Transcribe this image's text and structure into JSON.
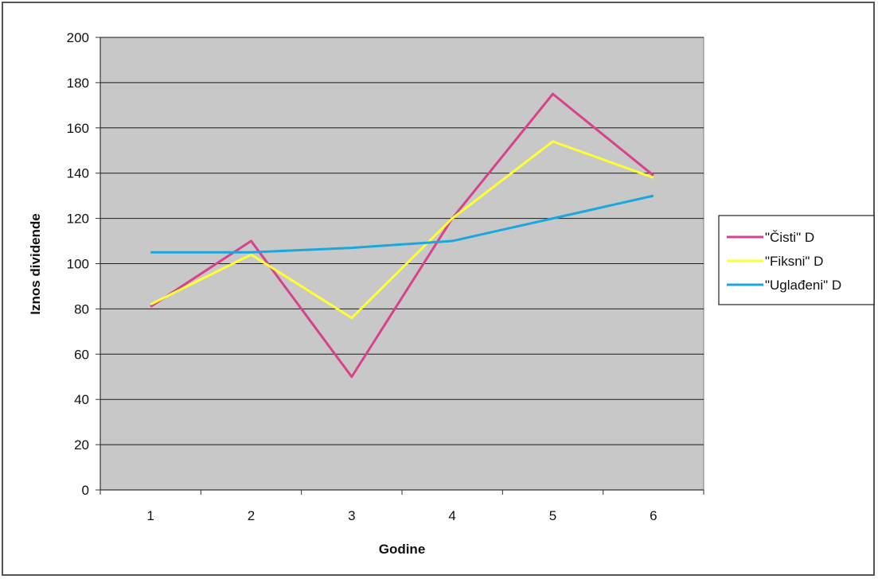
{
  "chart_data": {
    "type": "line",
    "title": "",
    "xlabel": "Godine",
    "ylabel": "Iznos dividende",
    "categories": [
      "1",
      "2",
      "3",
      "4",
      "5",
      "6"
    ],
    "ylim": [
      0,
      200
    ],
    "yticks": [
      0,
      20,
      40,
      60,
      80,
      100,
      120,
      140,
      160,
      180,
      200
    ],
    "ytick_labels": [
      "0",
      "20",
      "40",
      "60",
      "80",
      "100",
      "120",
      "140",
      "160",
      "180",
      "200"
    ],
    "grid": "horizontal",
    "legend_position": "right",
    "series": [
      {
        "name": "\"Čisti\" D",
        "color": "#d9418a",
        "values": [
          81,
          110,
          50,
          120,
          175,
          139
        ]
      },
      {
        "name": "\"Fiksni\" D",
        "color": "#ffff33",
        "values": [
          82,
          104,
          76,
          120,
          154,
          138
        ]
      },
      {
        "name": "\"Uglađeni\" D",
        "color": "#1aa7e0",
        "values": [
          105,
          105,
          107,
          110,
          120,
          130
        ]
      }
    ],
    "plot_background": "#c8c8c8"
  }
}
